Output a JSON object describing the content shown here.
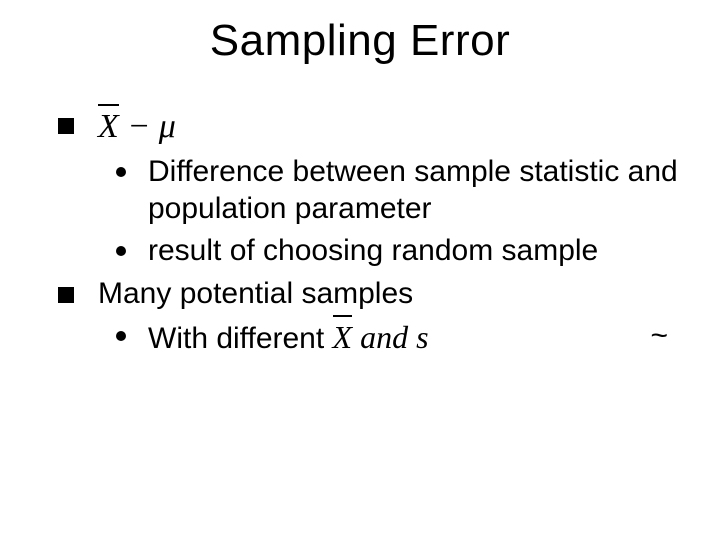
{
  "title": "Sampling Error",
  "formula1": {
    "x": "X",
    "minus": " − ",
    "mu": "μ"
  },
  "bullets": {
    "b1": "Difference between sample statistic and population parameter",
    "b2": "result of choosing random sample",
    "b3": "Many potential samples",
    "b4_prefix": "With different  ",
    "b4_formula_x": "X",
    "b4_formula_rest": " and s",
    "tilde": "~"
  },
  "style": {
    "background": "#ffffff",
    "text_color": "#000000",
    "title_fontsize": 44,
    "body_fontsize": 30,
    "formula_fontsize": 34,
    "bullet_square_size": 16,
    "bullet_dot_size": 10
  }
}
